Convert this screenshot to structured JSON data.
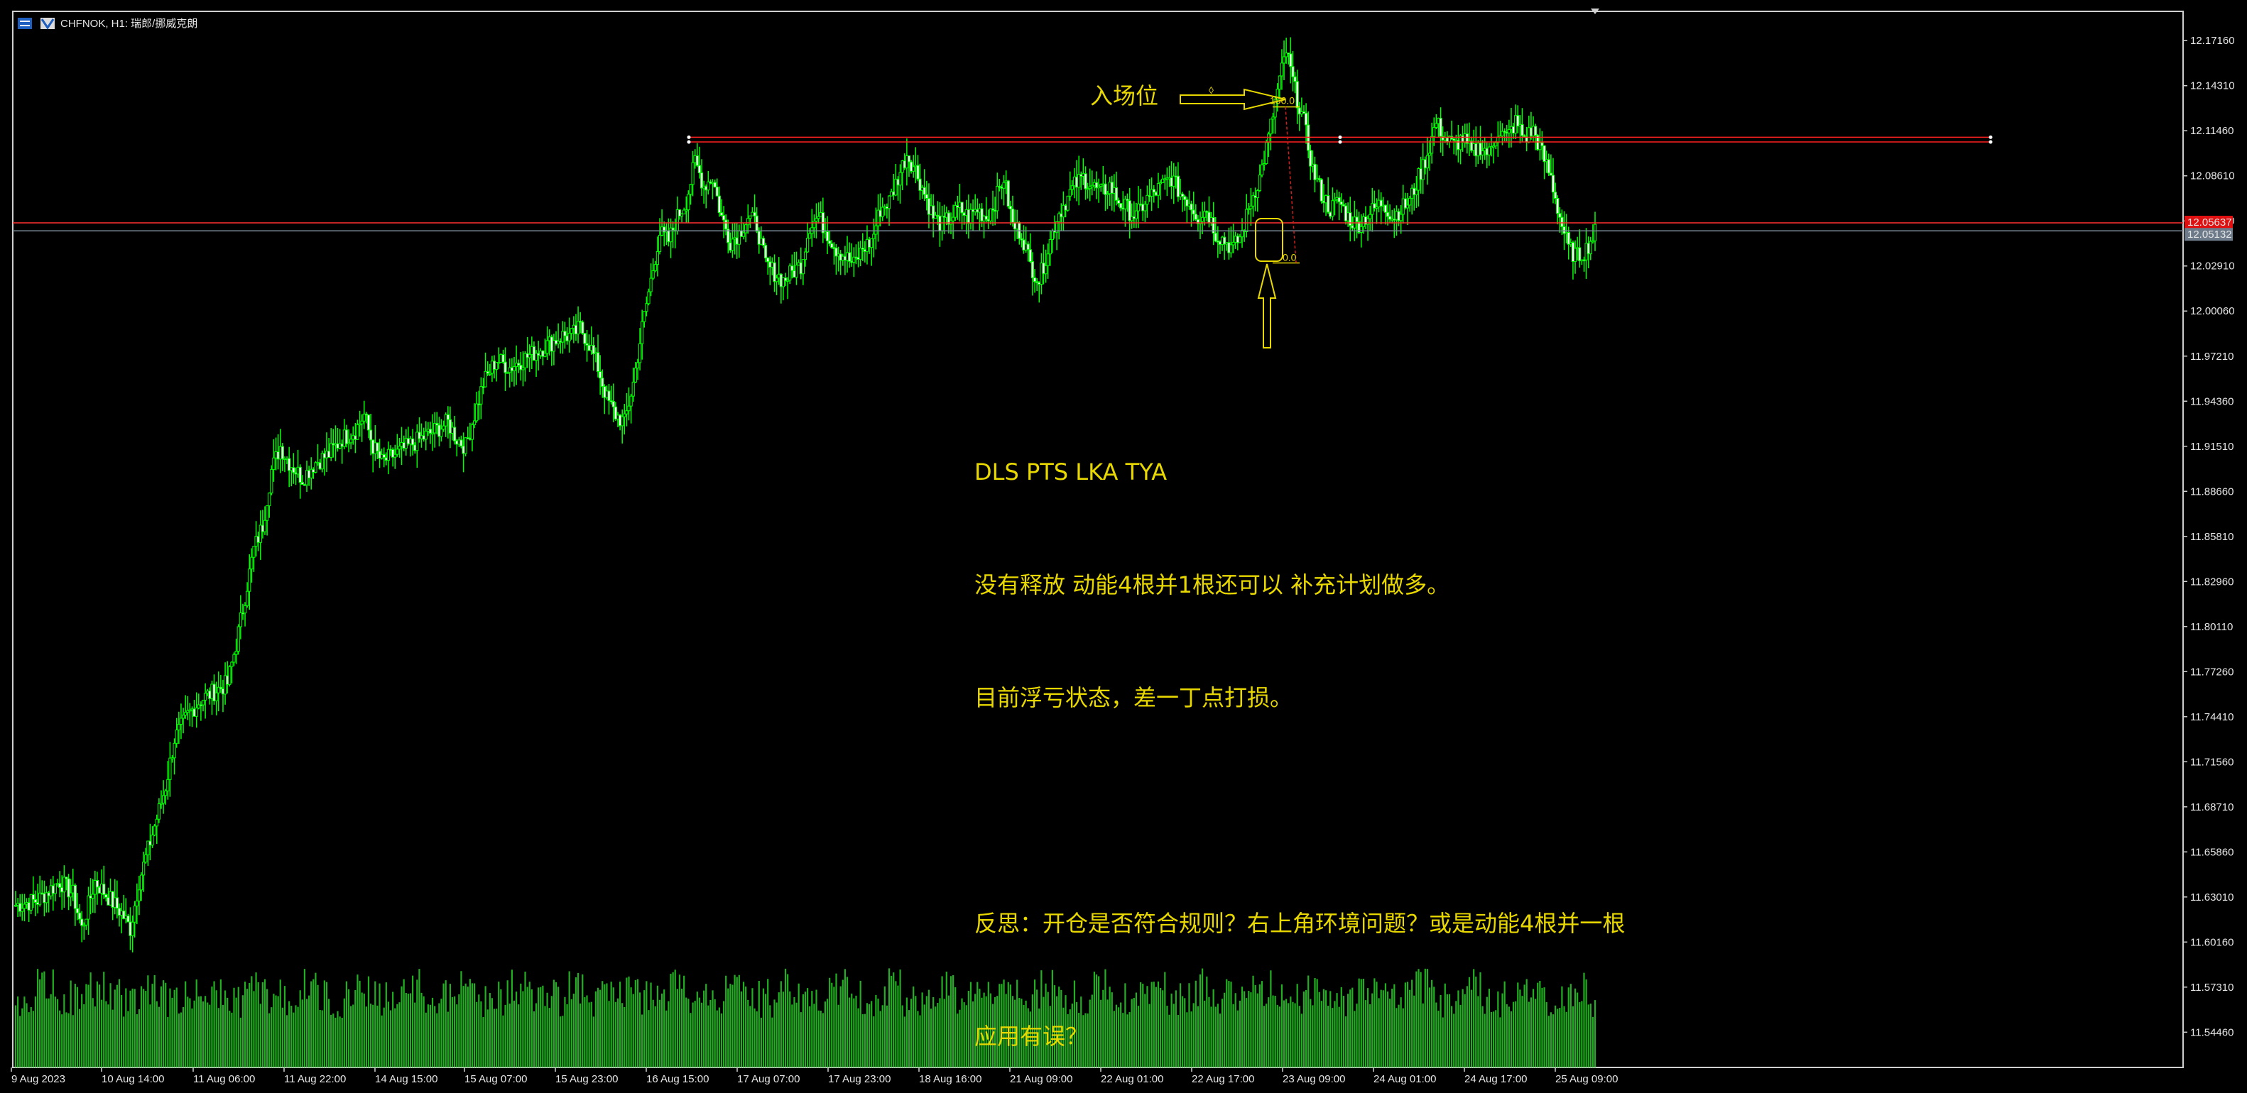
{
  "header": {
    "symbol_title": "CHFNOK, H1:  瑞郎/挪威克朗",
    "menu_icon": "bars-icon",
    "platform_icon": "mt-logo-icon"
  },
  "colors": {
    "background": "#000000",
    "bull": "#00ff00",
    "bear_body": "#ffffff",
    "volume": "#22b022",
    "annotation": "#e8d800",
    "level_red": "#ff2020",
    "ask_line": "#ff3030",
    "bid_line": "#7a8a9a"
  },
  "annotations": {
    "entry_label": "入场位",
    "fib_top": "100.0",
    "fib_bottom": "0.0",
    "fib_handle": "◊",
    "note_line1": "DLS PTS LKA TYA",
    "note_line2": "没有释放 动能4根并1根还可以 补充计划做多。",
    "note_line3": "目前浮亏状态，差一丁点打损。",
    "note_line4": "反思：开仓是否符合规则？右上角环境问题？或是动能4根并一根",
    "note_line5": "应用有误？"
  },
  "chart_data": {
    "type": "candlestick",
    "title": "CHFNOK, H1:  瑞郎/挪威克朗",
    "timeframe": "H1",
    "ylim": [
      11.5223,
      12.1901
    ],
    "y_ticks": [
      "12.17160",
      "12.14310",
      "12.11460",
      "12.08610",
      "12.05760",
      "12.02910",
      "12.00060",
      "11.97210",
      "11.94360",
      "11.91510",
      "11.88660",
      "11.85810",
      "11.82960",
      "11.80110",
      "11.77260",
      "11.74410",
      "11.71560",
      "11.68710",
      "11.65860",
      "11.63010",
      "11.60160",
      "11.57310",
      "11.54460"
    ],
    "x_ticks": [
      "9 Aug 2023",
      "10 Aug 14:00",
      "11 Aug 06:00",
      "11 Aug 22:00",
      "14 Aug 15:00",
      "15 Aug 07:00",
      "15 Aug 23:00",
      "16 Aug 15:00",
      "17 Aug 07:00",
      "17 Aug 23:00",
      "18 Aug 16:00",
      "21 Aug 09:00",
      "22 Aug 01:00",
      "22 Aug 17:00",
      "23 Aug 09:00",
      "24 Aug 01:00",
      "24 Aug 17:00",
      "25 Aug 09:00"
    ],
    "ask_price": "12.05637",
    "bid_price": "12.05132",
    "resistance_levels": [
      12.1105,
      12.1075
    ],
    "fib_levels": {
      "100.0": 12.1297,
      "0.0": 12.031
    },
    "close_path": [
      [
        0,
        11.625
      ],
      [
        10,
        11.628
      ],
      [
        20,
        11.64
      ],
      [
        26,
        11.632
      ],
      [
        30,
        11.61
      ],
      [
        36,
        11.64
      ],
      [
        42,
        11.63
      ],
      [
        48,
        11.62
      ],
      [
        52,
        11.61
      ],
      [
        56,
        11.64
      ],
      [
        60,
        11.66
      ],
      [
        64,
        11.68
      ],
      [
        68,
        11.7
      ],
      [
        72,
        11.73
      ],
      [
        78,
        11.745
      ],
      [
        84,
        11.755
      ],
      [
        90,
        11.76
      ],
      [
        96,
        11.765
      ],
      [
        100,
        11.79
      ],
      [
        104,
        11.82
      ],
      [
        108,
        11.85
      ],
      [
        112,
        11.865
      ],
      [
        116,
        11.9
      ],
      [
        120,
        11.915
      ],
      [
        124,
        11.905
      ],
      [
        130,
        11.895
      ],
      [
        136,
        11.905
      ],
      [
        142,
        11.91
      ],
      [
        148,
        11.92
      ],
      [
        154,
        11.925
      ],
      [
        158,
        11.935
      ],
      [
        162,
        11.915
      ],
      [
        166,
        11.905
      ],
      [
        172,
        11.91
      ],
      [
        178,
        11.915
      ],
      [
        184,
        11.92
      ],
      [
        190,
        11.925
      ],
      [
        196,
        11.93
      ],
      [
        200,
        11.92
      ],
      [
        204,
        11.915
      ],
      [
        208,
        11.935
      ],
      [
        212,
        11.955
      ],
      [
        218,
        11.97
      ],
      [
        224,
        11.965
      ],
      [
        230,
        11.97
      ],
      [
        236,
        11.975
      ],
      [
        242,
        11.98
      ],
      [
        248,
        11.985
      ],
      [
        252,
        11.985
      ],
      [
        256,
        11.99
      ],
      [
        260,
        11.98
      ],
      [
        264,
        11.965
      ],
      [
        268,
        11.945
      ],
      [
        272,
        11.935
      ],
      [
        276,
        11.93
      ],
      [
        280,
        11.955
      ],
      [
        284,
        11.99
      ],
      [
        288,
        12.02
      ],
      [
        292,
        12.05
      ],
      [
        296,
        12.045
      ],
      [
        300,
        12.06
      ],
      [
        304,
        12.07
      ],
      [
        308,
        12.095
      ],
      [
        312,
        12.08
      ],
      [
        316,
        12.085
      ],
      [
        320,
        12.06
      ],
      [
        324,
        12.045
      ],
      [
        328,
        12.05
      ],
      [
        332,
        12.06
      ],
      [
        336,
        12.055
      ],
      [
        340,
        12.03
      ],
      [
        344,
        12.025
      ],
      [
        348,
        12.02
      ],
      [
        352,
        12.025
      ],
      [
        356,
        12.03
      ],
      [
        360,
        12.055
      ],
      [
        364,
        12.06
      ],
      [
        368,
        12.05
      ],
      [
        372,
        12.04
      ],
      [
        376,
        12.035
      ],
      [
        380,
        12.03
      ],
      [
        384,
        12.04
      ],
      [
        388,
        12.045
      ],
      [
        392,
        12.065
      ],
      [
        396,
        12.07
      ],
      [
        400,
        12.085
      ],
      [
        404,
        12.1
      ],
      [
        408,
        12.09
      ],
      [
        412,
        12.075
      ],
      [
        416,
        12.06
      ],
      [
        420,
        12.055
      ],
      [
        424,
        12.06
      ],
      [
        428,
        12.065
      ],
      [
        432,
        12.06
      ],
      [
        436,
        12.065
      ],
      [
        440,
        12.06
      ],
      [
        444,
        12.07
      ],
      [
        448,
        12.085
      ],
      [
        452,
        12.055
      ],
      [
        456,
        12.05
      ],
      [
        460,
        12.03
      ],
      [
        464,
        12.02
      ],
      [
        468,
        12.04
      ],
      [
        472,
        12.06
      ],
      [
        476,
        12.07
      ],
      [
        480,
        12.08
      ],
      [
        484,
        12.085
      ],
      [
        488,
        12.08
      ],
      [
        492,
        12.075
      ],
      [
        496,
        12.08
      ],
      [
        500,
        12.07
      ],
      [
        504,
        12.065
      ],
      [
        508,
        12.06
      ],
      [
        512,
        12.07
      ],
      [
        516,
        12.075
      ],
      [
        520,
        12.08
      ],
      [
        524,
        12.085
      ],
      [
        528,
        12.075
      ],
      [
        532,
        12.07
      ],
      [
        536,
        12.06
      ],
      [
        540,
        12.065
      ],
      [
        544,
        12.05
      ],
      [
        548,
        12.045
      ],
      [
        552,
        12.04
      ],
      [
        556,
        12.05
      ],
      [
        560,
        12.07
      ],
      [
        564,
        12.085
      ],
      [
        568,
        12.11
      ],
      [
        572,
        12.14
      ],
      [
        576,
        12.165
      ],
      [
        580,
        12.14
      ],
      [
        584,
        12.12
      ],
      [
        588,
        12.09
      ],
      [
        592,
        12.075
      ],
      [
        596,
        12.065
      ],
      [
        600,
        12.07
      ],
      [
        604,
        12.06
      ],
      [
        608,
        12.055
      ],
      [
        612,
        12.06
      ],
      [
        616,
        12.065
      ],
      [
        620,
        12.07
      ],
      [
        624,
        12.06
      ],
      [
        628,
        12.065
      ],
      [
        632,
        12.07
      ],
      [
        636,
        12.085
      ],
      [
        640,
        12.1
      ],
      [
        644,
        12.12
      ],
      [
        648,
        12.11
      ],
      [
        652,
        12.105
      ],
      [
        656,
        12.11
      ],
      [
        660,
        12.1
      ],
      [
        664,
        12.105
      ],
      [
        668,
        12.1
      ],
      [
        672,
        12.115
      ],
      [
        676,
        12.11
      ],
      [
        680,
        12.12
      ],
      [
        684,
        12.11
      ],
      [
        688,
        12.115
      ],
      [
        692,
        12.1
      ],
      [
        696,
        12.085
      ],
      [
        700,
        12.06
      ],
      [
        704,
        12.04
      ],
      [
        708,
        12.035
      ],
      [
        712,
        12.04
      ],
      [
        716,
        12.05
      ]
    ],
    "volume_ylim": [
      0,
      100
    ]
  }
}
